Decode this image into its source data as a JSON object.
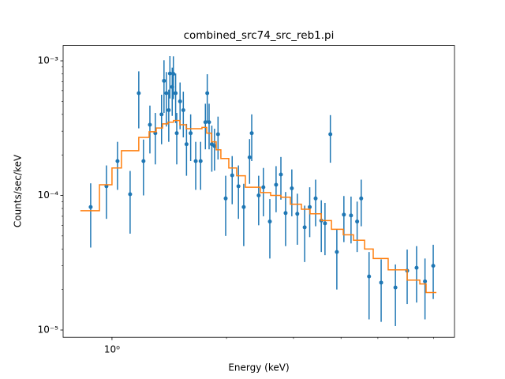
{
  "chart_data": {
    "type": "errorbar",
    "title": "combined_src74_src_reb1.pi",
    "xlabel": "Energy (keV)",
    "ylabel": "Counts/sec/keV",
    "xlog": true,
    "ylog": true,
    "xlim": [
      0.744,
      7.95
    ],
    "ylim": [
      8.83e-06,
      0.0013
    ],
    "xticks": [
      {
        "value": 1,
        "label": "10⁰"
      }
    ],
    "xminorticks": [
      2,
      3,
      4,
      5,
      6,
      7
    ],
    "yticks": [
      {
        "value": 1e-05,
        "label": "10⁻⁵"
      },
      {
        "value": 0.0001,
        "label": "10⁻⁴"
      },
      {
        "value": 0.001,
        "label": "10⁻³"
      }
    ],
    "yminorticks": [
      2e-05,
      3e-05,
      4e-05,
      5e-05,
      6e-05,
      7e-05,
      8e-05,
      9e-05,
      0.0002,
      0.0003,
      0.0004,
      0.0005,
      0.0006,
      0.0007,
      0.0008,
      0.0009
    ],
    "series": [
      {
        "type": "errorbar",
        "color": "#1f77b4",
        "x": [
          0.879,
          0.967,
          1.034,
          1.116,
          1.176,
          1.21,
          1.258,
          1.3,
          1.35,
          1.37,
          1.39,
          1.41,
          1.42,
          1.44,
          1.45,
          1.47,
          1.48,
          1.51,
          1.54,
          1.57,
          1.61,
          1.66,
          1.71,
          1.76,
          1.78,
          1.8,
          1.83,
          1.86,
          1.9,
          1.99,
          2.07,
          2.15,
          2.22,
          2.3,
          2.33,
          2.43,
          2.5,
          2.6,
          2.7,
          2.78,
          2.86,
          2.97,
          3.07,
          3.21,
          3.31,
          3.43,
          3.55,
          3.63,
          3.75,
          3.9,
          4.07,
          4.25,
          4.41,
          4.52,
          4.74,
          5.1,
          5.56,
          5.97,
          6.32,
          6.65,
          6.99
        ],
        "values": [
          8.2e-05,
          0.000117,
          0.00018,
          0.000102,
          0.000575,
          0.00018,
          0.000335,
          0.00029,
          0.0004,
          0.00071,
          0.000575,
          0.00043,
          0.000805,
          0.00064,
          0.0008,
          0.000575,
          0.00029,
          0.0005,
          0.00043,
          0.00024,
          0.00029,
          0.00018,
          0.00018,
          0.00035,
          0.000575,
          0.00035,
          0.00024,
          0.000233,
          0.000285,
          9.5e-05,
          0.000141,
          0.000117,
          8.2e-05,
          0.000192,
          0.00029,
          0.0001,
          0.000115,
          6.4e-05,
          0.00012,
          0.000143,
          7.4e-05,
          0.000113,
          7.3e-05,
          5.8e-05,
          8.2e-05,
          9.5e-05,
          6.5e-05,
          6.2e-05,
          0.000285,
          3.8e-05,
          7.2e-05,
          7.1e-05,
          6.4e-05,
          9.5e-05,
          2.5e-05,
          2.25e-05,
          2.07e-05,
          2.76e-05,
          2.9e-05,
          2.3e-05,
          3e-05
        ],
        "errors": [
          4.1e-05,
          5e-05,
          7e-05,
          5e-05,
          0.00026,
          8e-05,
          0.00013,
          0.00012,
          0.00016,
          0.0003,
          0.00025,
          0.00018,
          0.00028,
          0.00025,
          0.00028,
          0.00023,
          0.00012,
          0.00019,
          0.00016,
          0.0001,
          0.00011,
          7e-05,
          7e-05,
          0.00013,
          0.00022,
          0.00013,
          9e-05,
          8e-05,
          0.0001,
          4.5e-05,
          5.5e-05,
          5e-05,
          4e-05,
          7e-05,
          0.00011,
          4e-05,
          4.5e-05,
          3e-05,
          4.5e-05,
          5e-05,
          3.2e-05,
          4.3e-05,
          3e-05,
          2.6e-05,
          3.3e-05,
          3.6e-05,
          2.7e-05,
          2.6e-05,
          0.00011,
          1.8e-05,
          2.7e-05,
          2.7e-05,
          2.6e-05,
          3.6e-05,
          1.3e-05,
          1.1e-05,
          1e-05,
          1.2e-05,
          1.3e-05,
          1.1e-05,
          1.3e-05
        ]
      },
      {
        "type": "step",
        "color": "#ff7f0e",
        "bins": [
          0.826,
          0.927,
          1.0,
          1.059,
          1.176,
          1.252,
          1.307,
          1.358,
          1.404,
          1.451,
          1.508,
          1.567,
          1.724,
          1.774,
          1.826,
          1.879,
          1.933,
          2.028,
          2.127,
          2.242,
          2.455,
          2.612,
          2.78,
          2.944,
          3.147,
          3.317,
          3.547,
          3.775,
          4.055,
          4.314,
          4.613,
          4.861,
          5.322,
          5.971,
          6.445,
          6.694,
          7.125
        ],
        "values": [
          7.7e-05,
          0.00012,
          0.00016,
          0.000215,
          0.00027,
          0.000297,
          0.000317,
          0.00034,
          0.00035,
          0.00036,
          0.000335,
          0.000313,
          0.00032,
          0.00029,
          0.00025,
          0.000218,
          0.000188,
          0.00016,
          0.00014,
          0.000115,
          0.000105,
          0.0001,
          9.7e-05,
          8.6e-05,
          7.9e-05,
          7.3e-05,
          6.5e-05,
          5.6e-05,
          5.1e-05,
          4.65e-05,
          4e-05,
          3.4e-05,
          2.8e-05,
          2.35e-05,
          2.2e-05,
          1.9e-05
        ]
      }
    ]
  }
}
